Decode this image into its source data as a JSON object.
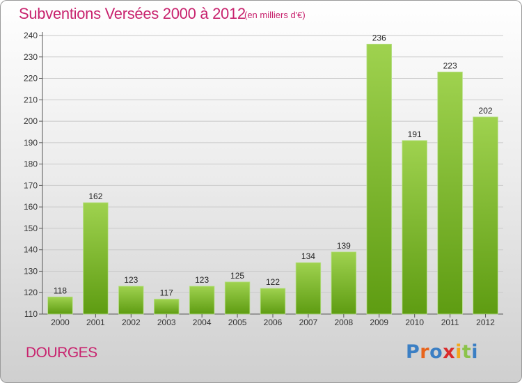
{
  "header": {
    "title": "Subventions Versées 2000 à 2012",
    "subtitle": "(en milliers d'€)"
  },
  "footer": {
    "commune": "DOURGES",
    "logo": "Proxiti",
    "logo_colors": [
      "#3b7fc4",
      "#e8641b",
      "#3b7fc4",
      "#d92b2b",
      "#f2a81d",
      "#8bc34a",
      "#3b7fc4"
    ]
  },
  "colors": {
    "title": "#c8236e",
    "bar_top": "#9fd24f",
    "bar_bottom": "#5e9c12",
    "grid": "#c9c9c9"
  },
  "chart_data": {
    "type": "bar",
    "title": "Subventions Versées 2000 à 2012",
    "subtitle": "(en milliers d'€)",
    "categories": [
      "2000",
      "2001",
      "2002",
      "2003",
      "2004",
      "2005",
      "2006",
      "2007",
      "2008",
      "2009",
      "2010",
      "2011",
      "2012"
    ],
    "values": [
      118,
      162,
      123,
      117,
      123,
      125,
      122,
      134,
      139,
      236,
      191,
      223,
      202
    ],
    "ylim": [
      110,
      240
    ],
    "yticks": [
      110,
      120,
      130,
      140,
      150,
      160,
      170,
      180,
      190,
      200,
      210,
      220,
      230,
      240
    ],
    "grid": true,
    "data_labels": true
  }
}
